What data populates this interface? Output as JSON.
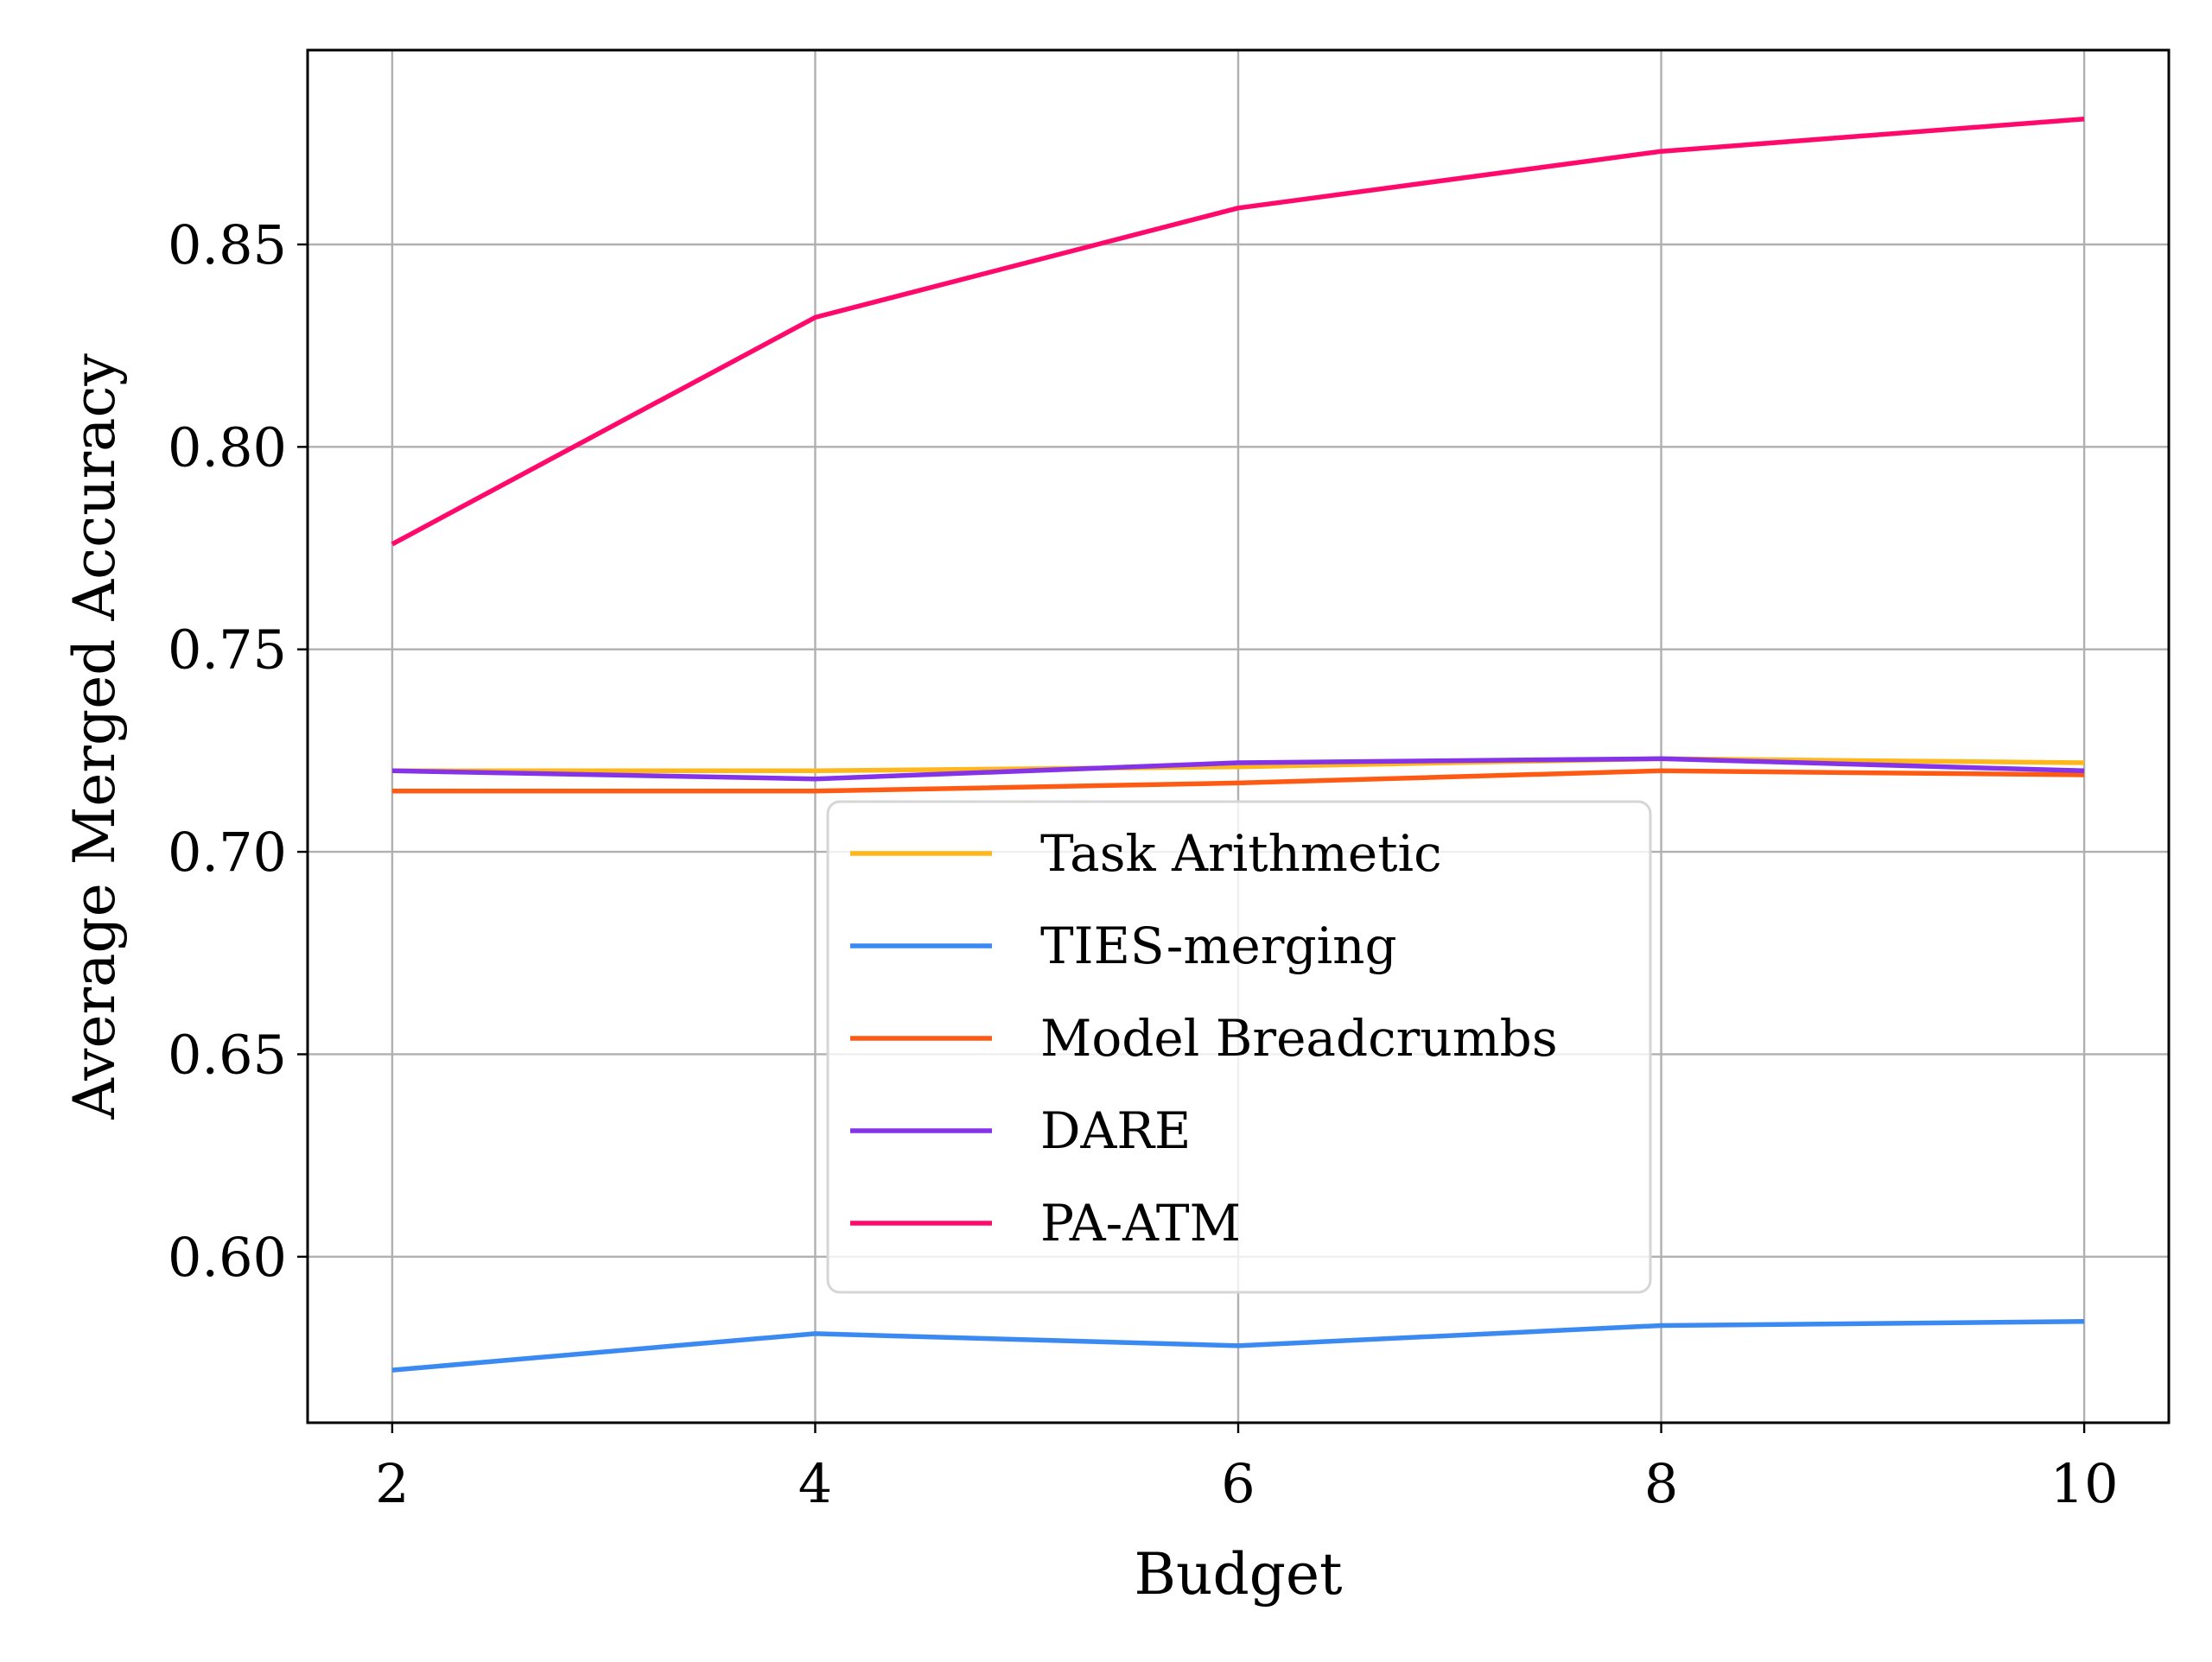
{
  "chart_data": {
    "type": "line",
    "title": "",
    "xlabel": "Budget",
    "ylabel": "Average Merged Accuracy",
    "x": [
      2,
      4,
      6,
      8,
      10
    ],
    "xlim": [
      1.6,
      10.4
    ],
    "ylim": [
      0.559,
      0.898
    ],
    "xticks": [
      2,
      4,
      6,
      8,
      10
    ],
    "xtick_labels": [
      "2",
      "4",
      "6",
      "8",
      "10"
    ],
    "yticks": [
      0.6,
      0.65,
      0.7,
      0.75,
      0.8,
      0.85
    ],
    "ytick_labels": [
      "0.60",
      "0.65",
      "0.70",
      "0.75",
      "0.80",
      "0.85"
    ],
    "grid": true,
    "legend_position": "lower-center",
    "series": [
      {
        "name": "Task Arithmetic",
        "color": "#FFB71B",
        "values": [
          0.72,
          0.72,
          0.721,
          0.723,
          0.722
        ]
      },
      {
        "name": "TIES-merging",
        "color": "#3B8AF2",
        "values": [
          0.572,
          0.581,
          0.578,
          0.583,
          0.584
        ]
      },
      {
        "name": "Model Breadcrumbs",
        "color": "#FF5A14",
        "values": [
          0.715,
          0.715,
          0.717,
          0.72,
          0.719
        ]
      },
      {
        "name": "DARE",
        "color": "#8433E8",
        "values": [
          0.72,
          0.718,
          0.722,
          0.723,
          0.72
        ]
      },
      {
        "name": "PA-ATM",
        "color": "#FF0A6C",
        "values": [
          0.776,
          0.832,
          0.859,
          0.873,
          0.881
        ]
      }
    ]
  }
}
